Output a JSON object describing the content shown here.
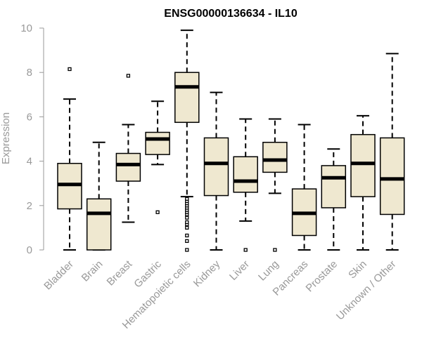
{
  "chart_data": {
    "type": "boxplot",
    "title": "ENSG00000136634 - IL10",
    "ylabel": "Expression",
    "xlabel": "",
    "ylim": [
      0,
      10
    ],
    "yticks": [
      0,
      2,
      4,
      6,
      8,
      10
    ],
    "grid": false,
    "box_fill": "#efe8d0",
    "box_stroke": "#000000",
    "median_color": "#000000",
    "axis_color": "#999999",
    "categories": [
      "Bladder",
      "Brain",
      "Breast",
      "Gastric",
      "Hematopoietic cells",
      "Kidney",
      "Liver",
      "Lung",
      "Pancreas",
      "Prostate",
      "Skin",
      "Unknown / Other"
    ],
    "boxes": [
      {
        "category": "Bladder",
        "whisker_low": 0.0,
        "q1": 1.85,
        "median": 2.95,
        "q3": 3.9,
        "whisker_high": 6.8,
        "outliers": [
          8.15
        ]
      },
      {
        "category": "Brain",
        "whisker_low": 0.0,
        "q1": 0.0,
        "median": 1.65,
        "q3": 2.3,
        "whisker_high": 4.85,
        "outliers": []
      },
      {
        "category": "Breast",
        "whisker_low": 1.25,
        "q1": 3.1,
        "median": 3.85,
        "q3": 4.35,
        "whisker_high": 5.65,
        "outliers": [
          7.85
        ]
      },
      {
        "category": "Gastric",
        "whisker_low": 3.85,
        "q1": 4.3,
        "median": 5.0,
        "q3": 5.3,
        "whisker_high": 6.7,
        "outliers": [
          1.7
        ]
      },
      {
        "category": "Hematopoietic cells",
        "whisker_low": 2.4,
        "q1": 5.75,
        "median": 7.35,
        "q3": 8.0,
        "whisker_high": 9.9,
        "outliers": [
          0.0,
          0.4,
          0.65,
          1.0,
          1.15,
          1.25,
          1.45,
          1.6,
          1.7,
          1.8,
          1.9,
          2.0,
          2.1,
          2.2,
          2.3
        ]
      },
      {
        "category": "Kidney",
        "whisker_low": 0.0,
        "q1": 2.45,
        "median": 3.9,
        "q3": 5.05,
        "whisker_high": 7.1,
        "outliers": []
      },
      {
        "category": "Liver",
        "whisker_low": 1.3,
        "q1": 2.6,
        "median": 3.1,
        "q3": 4.2,
        "whisker_high": 5.9,
        "outliers": [
          0.0
        ]
      },
      {
        "category": "Lung",
        "whisker_low": 2.55,
        "q1": 3.5,
        "median": 4.05,
        "q3": 4.85,
        "whisker_high": 5.9,
        "outliers": [
          0.0
        ]
      },
      {
        "category": "Pancreas",
        "whisker_low": 0.0,
        "q1": 0.65,
        "median": 1.65,
        "q3": 2.75,
        "whisker_high": 5.65,
        "outliers": []
      },
      {
        "category": "Prostate",
        "whisker_low": 0.0,
        "q1": 1.9,
        "median": 3.25,
        "q3": 3.8,
        "whisker_high": 4.55,
        "outliers": []
      },
      {
        "category": "Skin",
        "whisker_low": 0.0,
        "q1": 2.4,
        "median": 3.9,
        "q3": 5.2,
        "whisker_high": 6.05,
        "outliers": []
      },
      {
        "category": "Unknown / Other",
        "whisker_low": 0.0,
        "q1": 1.6,
        "median": 3.2,
        "q3": 5.05,
        "whisker_high": 8.85,
        "outliers": []
      }
    ]
  }
}
